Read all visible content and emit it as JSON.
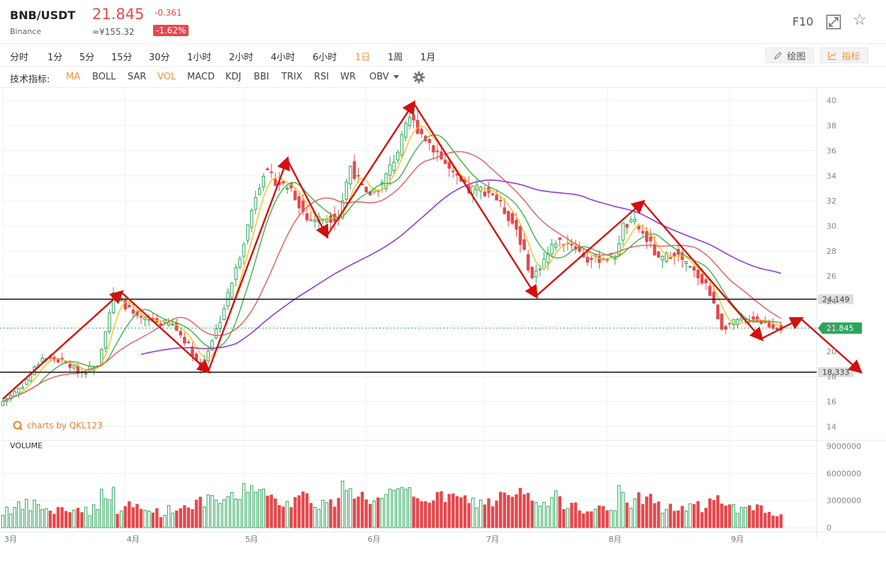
{
  "header": {
    "symbol": "BNB/USDT",
    "exchange": "Binance",
    "price": "21.845",
    "cny_price": "≈¥155.32",
    "change": "-0.361",
    "change_pct": "-1.62%",
    "f10": "F10",
    "icons": {
      "expand": "expand-icon",
      "favorite": "star-icon"
    }
  },
  "periods": [
    "分时",
    "1分",
    "5分",
    "15分",
    "30分",
    "1小时",
    "2小时",
    "4小时",
    "6小时",
    "1日",
    "1周",
    "1月"
  ],
  "active_period": "1日",
  "tools": {
    "draw_label": "绘图",
    "indicator_label": "指标"
  },
  "indicators": {
    "label": "技术指标:",
    "items": [
      "MA",
      "BOLL",
      "SAR",
      "VOL",
      "MACD",
      "KDJ",
      "BBI",
      "TRIX",
      "RSI",
      "WR",
      "OBV"
    ],
    "active": [
      "MA",
      "VOL"
    ]
  },
  "watermark": "charts by QKL123",
  "volume_label": "VOLUME",
  "colors": {
    "up": "#2aa65a",
    "down": "#e5484d",
    "ma5": "#f0c419",
    "ma10": "#3fb04a",
    "ma20": "#e25a5a",
    "ma60": "#8b3fd4",
    "arrow": "#d40f0f",
    "accent": "#f0953a"
  },
  "chart_data": {
    "type": "candlestick",
    "ylim": [
      13,
      41
    ],
    "y_ticks": [
      14,
      16,
      18,
      20,
      22,
      24,
      26,
      28,
      30,
      32,
      34,
      36,
      38,
      40
    ],
    "volume_ticks": [
      "0",
      "3000000",
      "6000000",
      "9000000"
    ],
    "volume_max": 9000000,
    "x_labels": [
      "3月",
      "4月",
      "5月",
      "6月",
      "7月",
      "8月",
      "9月"
    ],
    "x_label_days": [
      0,
      31,
      61,
      92,
      122,
      153,
      184
    ],
    "total_days": 206,
    "last_price": 21.845,
    "last_price_label": "21.845",
    "levels": [
      {
        "value": 24.149,
        "label": "24.149"
      },
      {
        "value": 18.333,
        "label": "18.333"
      }
    ],
    "close_path": [
      [
        0,
        16.0
      ],
      [
        5,
        17.3
      ],
      [
        10,
        19.5
      ],
      [
        15,
        19.2
      ],
      [
        20,
        18.3
      ],
      [
        24,
        19.0
      ],
      [
        28,
        24.5
      ],
      [
        30,
        24.0
      ],
      [
        34,
        22.6
      ],
      [
        38,
        22.4
      ],
      [
        43,
        22.1
      ],
      [
        47,
        20.5
      ],
      [
        50,
        18.6
      ],
      [
        55,
        22.5
      ],
      [
        59,
        26.5
      ],
      [
        62,
        30.0
      ],
      [
        64,
        32.5
      ],
      [
        66,
        34.3
      ],
      [
        70,
        33.4
      ],
      [
        73,
        33.0
      ],
      [
        77,
        30.5
      ],
      [
        81,
        30.6
      ],
      [
        85,
        30.7
      ],
      [
        88,
        34.8
      ],
      [
        92,
        32.4
      ],
      [
        96,
        33.3
      ],
      [
        100,
        36.0
      ],
      [
        103,
        38.6
      ],
      [
        106,
        37.4
      ],
      [
        110,
        35.9
      ],
      [
        114,
        34.0
      ],
      [
        118,
        32.8
      ],
      [
        120,
        33.0
      ],
      [
        124,
        32.6
      ],
      [
        130,
        29.8
      ],
      [
        134,
        25.8
      ],
      [
        136,
        26.8
      ],
      [
        140,
        28.8
      ],
      [
        144,
        28.6
      ],
      [
        148,
        27.3
      ],
      [
        152,
        27.4
      ],
      [
        155,
        27.6
      ],
      [
        157,
        30.0
      ],
      [
        160,
        30.2
      ],
      [
        164,
        28.5
      ],
      [
        166,
        27.2
      ],
      [
        170,
        27.9
      ],
      [
        174,
        26.6
      ],
      [
        178,
        25.4
      ],
      [
        182,
        21.9
      ],
      [
        186,
        22.4
      ],
      [
        190,
        22.6
      ],
      [
        194,
        22.1
      ],
      [
        197,
        21.845
      ]
    ],
    "ma_periods": [
      5,
      10,
      20,
      60
    ],
    "trend_arrows": [
      [
        [
          0,
          16.2
        ],
        [
          30,
          24.7
        ]
      ],
      [
        [
          30,
          24.7
        ],
        [
          52,
          18.4
        ]
      ],
      [
        [
          52,
          18.4
        ],
        [
          72,
          35.3
        ]
      ],
      [
        [
          72,
          35.3
        ],
        [
          82,
          29.2
        ]
      ],
      [
        [
          82,
          29.2
        ],
        [
          104,
          39.8
        ]
      ],
      [
        [
          104,
          39.8
        ],
        [
          135,
          24.4
        ]
      ],
      [
        [
          135,
          24.4
        ],
        [
          162,
          31.9
        ]
      ],
      [
        [
          162,
          31.9
        ],
        [
          192,
          21.0
        ]
      ],
      [
        [
          192,
          21.0
        ],
        [
          202,
          22.6
        ]
      ],
      [
        [
          202,
          22.6
        ],
        [
          217,
          18.4
        ]
      ]
    ]
  }
}
